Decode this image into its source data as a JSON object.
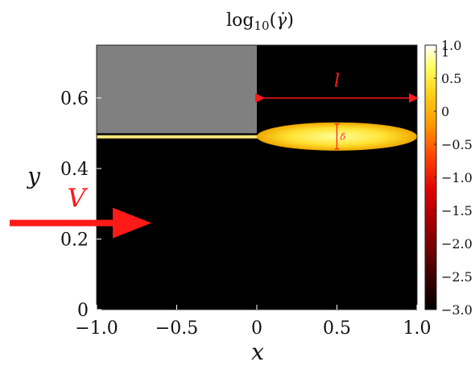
{
  "chart_data": {
    "type": "heatmap",
    "title": "log₁₀(γ̇)",
    "xlabel": "x",
    "ylabel": "y",
    "xlim": [
      -1.0,
      1.0
    ],
    "ylim": [
      0,
      0.75
    ],
    "x_ticks": [
      "−1.0",
      "−0.5",
      "0",
      "0.5",
      "1.0"
    ],
    "x_tick_values": [
      -1.0,
      -0.5,
      0,
      0.5,
      1.0
    ],
    "y_ticks": [
      "0",
      "0.2",
      "0.4",
      "0.6"
    ],
    "y_tick_values": [
      0,
      0.2,
      0.4,
      0.6
    ],
    "colorbar": {
      "range": [
        -3.0,
        1.0
      ],
      "ticks": [
        "1.0",
        "1",
        "0.5",
        "0",
        "−0.5",
        "−1.0",
        "−1.5",
        "−2.0",
        "−2.5",
        "−3.0"
      ],
      "tick_values": [
        1.0,
        0.9,
        0.5,
        0,
        -0.5,
        -1.0,
        -1.5,
        -2.0,
        -2.5,
        -3.0
      ],
      "colormap": [
        "#000000",
        "#3a0000",
        "#8b0000",
        "#e00000",
        "#ff4500",
        "#ff9900",
        "#ffd21a",
        "#ffff66",
        "#ffffff"
      ]
    },
    "regions": {
      "solid_block": {
        "x": [
          -1.0,
          0.0
        ],
        "y": [
          0.5,
          0.75
        ],
        "color": "#808080"
      },
      "thin_shear_layer": {
        "x": [
          -1.0,
          0.0
        ],
        "y_center": 0.49,
        "color": "#ffe87a"
      },
      "fluid_layer": {
        "x": [
          0.0,
          1.0
        ],
        "y_center": 0.5,
        "peak_thickness": 0.08,
        "color": "#ffd21a"
      },
      "background_value": -3.0
    },
    "annotations": {
      "length_label": "l",
      "length_span_x": [
        0.0,
        1.0
      ],
      "length_y": 0.6,
      "thickness_label": "δ",
      "thickness_x": 0.5,
      "velocity_label": "V",
      "velocity_arrow_y": 0.25,
      "annotation_color": "#ff1a1a"
    }
  }
}
